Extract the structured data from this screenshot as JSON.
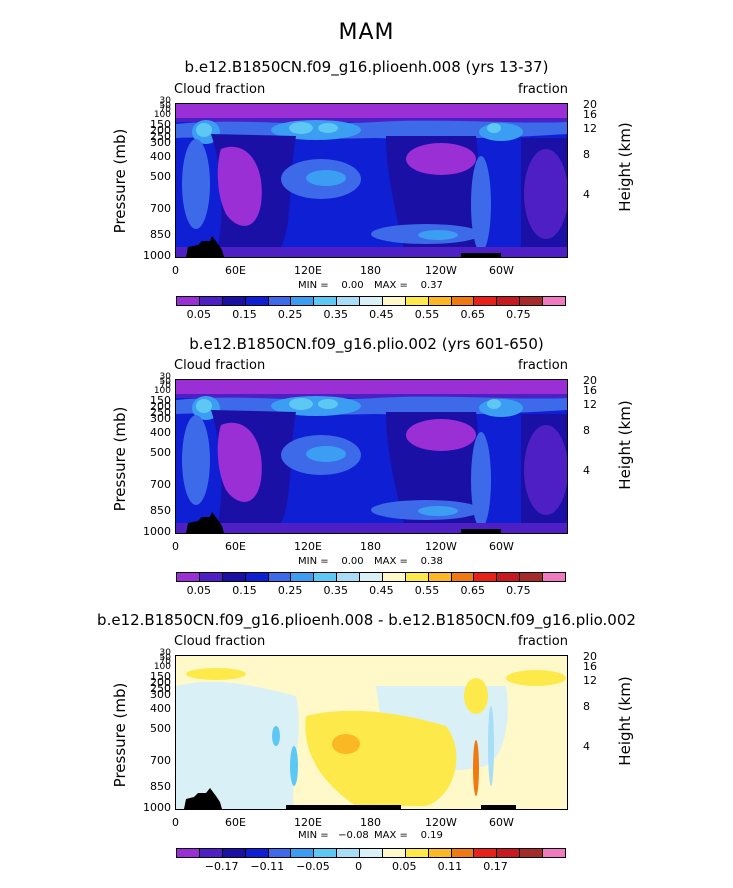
{
  "title": "MAM",
  "colors": {
    "mean_scale": [
      "#9b2fd6",
      "#4e1fc5",
      "#1a10a6",
      "#0f1fd4",
      "#3c6ae8",
      "#3b9ef2",
      "#5ec8f5",
      "#a8ddf8",
      "#d9f1f6",
      "#fff9c9",
      "#fde94a",
      "#f9b824",
      "#f07a12",
      "#e8201a",
      "#c71a1f",
      "#a52a2a",
      "#f07ac0"
    ],
    "diff_scale": [
      "#9b2fd6",
      "#4e1fc5",
      "#1a10a6",
      "#0f1fd4",
      "#3c6ae8",
      "#3b9ef2",
      "#5ec8f5",
      "#a8ddf8",
      "#d9f1f6",
      "#fff9c9",
      "#fde94a",
      "#f9b824",
      "#f07a12",
      "#e8201a",
      "#c71a1f",
      "#a52a2a",
      "#f07ac0"
    ]
  },
  "chart_data": [
    {
      "type": "heatmap",
      "title": "b.e12.B1850CN.f09_g16.plioenh.008 (yrs 13-37)",
      "left_label": "Cloud fraction",
      "right_label": "fraction",
      "ylabel": "Pressure (mb)",
      "y2label": "Height (km)",
      "x_ticks": [
        "0",
        "60E",
        "120E",
        "180",
        "120W",
        "60W"
      ],
      "y_ticks": [
        "30",
        "50",
        "70",
        "100",
        "150",
        "200",
        "250",
        "300",
        "400",
        "500",
        "700",
        "850",
        "1000"
      ],
      "y2_ticks": [
        "20",
        "16",
        "12",
        "8",
        "4"
      ],
      "min_text": "MIN =    0.00",
      "max_text": "MAX =    0.37",
      "colorbar_labels": [
        "0.05",
        "0.15",
        "0.25",
        "0.35",
        "0.45",
        "0.55",
        "0.65",
        "0.75"
      ]
    },
    {
      "type": "heatmap",
      "title": "b.e12.B1850CN.f09_g16.plio.002 (yrs 601-650)",
      "left_label": "Cloud fraction",
      "right_label": "fraction",
      "ylabel": "Pressure (mb)",
      "y2label": "Height (km)",
      "x_ticks": [
        "0",
        "60E",
        "120E",
        "180",
        "120W",
        "60W"
      ],
      "y_ticks": [
        "30",
        "50",
        "70",
        "100",
        "150",
        "200",
        "250",
        "300",
        "400",
        "500",
        "700",
        "850",
        "1000"
      ],
      "y2_ticks": [
        "20",
        "16",
        "12",
        "8",
        "4"
      ],
      "min_text": "MIN =    0.00",
      "max_text": "MAX =    0.38",
      "colorbar_labels": [
        "0.05",
        "0.15",
        "0.25",
        "0.35",
        "0.45",
        "0.55",
        "0.65",
        "0.75"
      ]
    },
    {
      "type": "heatmap",
      "title": "b.e12.B1850CN.f09_g16.plioenh.008 - b.e12.B1850CN.f09_g16.plio.002",
      "left_label": "Cloud fraction",
      "right_label": "fraction",
      "ylabel": "Pressure (mb)",
      "y2label": "Height (km)",
      "x_ticks": [
        "0",
        "60E",
        "120E",
        "180",
        "120W",
        "60W"
      ],
      "y_ticks": [
        "30",
        "50",
        "70",
        "100",
        "150",
        "200",
        "250",
        "300",
        "400",
        "500",
        "700",
        "850",
        "1000"
      ],
      "y2_ticks": [
        "20",
        "16",
        "12",
        "8",
        "4"
      ],
      "min_text": "MIN =   −0.08",
      "max_text": "MAX =    0.19",
      "colorbar_labels": [
        "−0.17",
        "−0.11",
        "−0.05",
        "0",
        "0.05",
        "0.11",
        "0.17"
      ]
    }
  ]
}
